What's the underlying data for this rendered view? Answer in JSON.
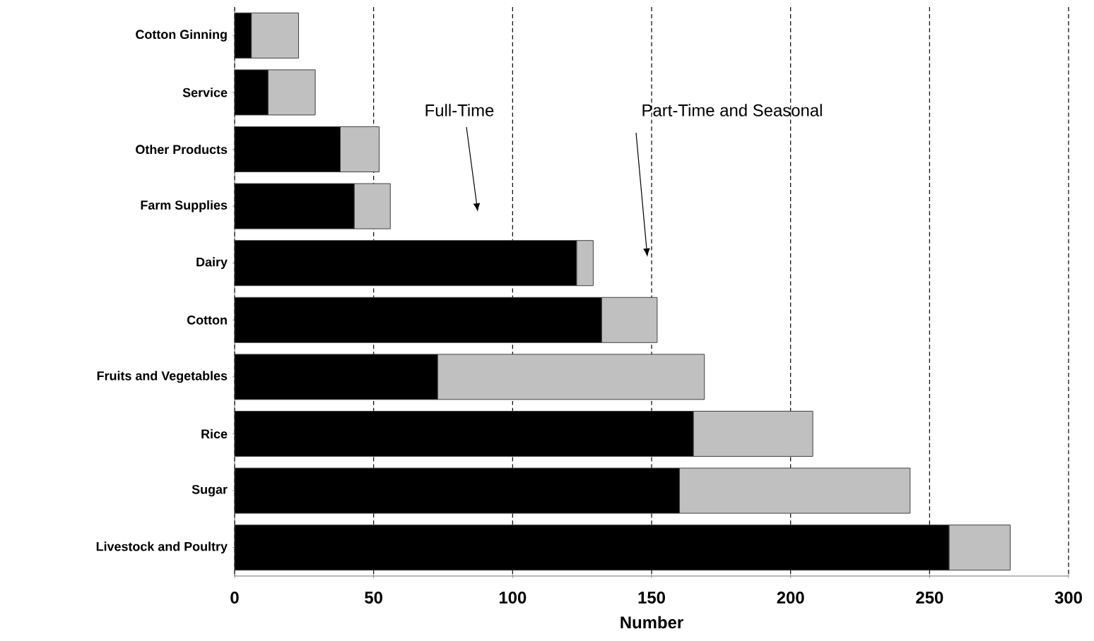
{
  "chart_data": {
    "type": "bar",
    "orientation": "horizontal",
    "stacked": true,
    "xlabel": "Number",
    "categories": [
      "Cotton Ginning",
      "Service",
      "Other Products",
      "Farm Supplies",
      "Dairy",
      "Cotton",
      "Fruits and Vegetables",
      "Rice",
      "Sugar",
      "Livestock and Poultry"
    ],
    "series": [
      {
        "color": "#000000",
        "values": [
          6,
          12,
          38,
          43,
          123,
          132,
          73,
          165,
          160,
          257
        ]
      },
      {
        "color": "#c0c0c0",
        "values": [
          17,
          17,
          14,
          13,
          6,
          20,
          96,
          43,
          83,
          22
        ]
      }
    ],
    "xlim": [
      0,
      300
    ],
    "xticks": [
      0,
      50,
      100,
      150,
      200,
      250,
      300
    ],
    "grid": "x",
    "annotations": [
      "Full-Time",
      "Part-Time and Seasonal"
    ]
  }
}
